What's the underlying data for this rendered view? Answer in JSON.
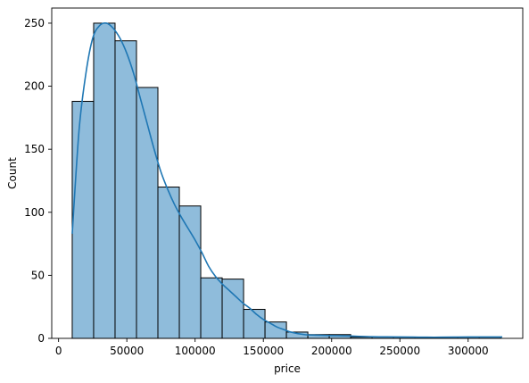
{
  "chart_data": {
    "type": "bar",
    "subtype": "histogram_with_kde",
    "title": "",
    "xlabel": "price",
    "ylabel": "Count",
    "xlim": [
      -5000,
      340000
    ],
    "ylim": [
      0,
      262
    ],
    "x_ticks": [
      0,
      50000,
      100000,
      150000,
      200000,
      250000,
      300000
    ],
    "y_ticks": [
      0,
      50,
      100,
      150,
      200,
      250
    ],
    "grid": false,
    "legend": "none",
    "bar_fill_color": "#8fbcdb",
    "bar_edge_color": "#000000",
    "kde_color": "#1f77b4",
    "bins": [
      {
        "x0": 10000,
        "x1": 25690,
        "count": 188
      },
      {
        "x0": 25690,
        "x1": 41380,
        "count": 250
      },
      {
        "x0": 41380,
        "x1": 57070,
        "count": 236
      },
      {
        "x0": 57070,
        "x1": 72760,
        "count": 199
      },
      {
        "x0": 72760,
        "x1": 88450,
        "count": 120
      },
      {
        "x0": 88450,
        "x1": 104140,
        "count": 105
      },
      {
        "x0": 104140,
        "x1": 119830,
        "count": 48
      },
      {
        "x0": 119830,
        "x1": 135520,
        "count": 47
      },
      {
        "x0": 135520,
        "x1": 151210,
        "count": 23
      },
      {
        "x0": 151210,
        "x1": 166900,
        "count": 13
      },
      {
        "x0": 166900,
        "x1": 182590,
        "count": 5
      },
      {
        "x0": 182590,
        "x1": 198280,
        "count": 3
      },
      {
        "x0": 198280,
        "x1": 213970,
        "count": 3
      },
      {
        "x0": 213970,
        "x1": 229660,
        "count": 1
      },
      {
        "x0": 229660,
        "x1": 245350,
        "count": 1
      },
      {
        "x0": 245350,
        "x1": 261040,
        "count": 1
      },
      {
        "x0": 261040,
        "x1": 276730,
        "count": 1
      },
      {
        "x0": 276730,
        "x1": 292420,
        "count": 1
      },
      {
        "x0": 292420,
        "x1": 308110,
        "count": 1
      },
      {
        "x0": 308110,
        "x1": 323800,
        "count": 1
      }
    ],
    "kde": {
      "x": [
        10000,
        15000,
        20000,
        25000,
        30000,
        35000,
        40000,
        45000,
        50000,
        55000,
        60000,
        65000,
        70000,
        75000,
        80000,
        85000,
        90000,
        95000,
        100000,
        105000,
        110000,
        115000,
        120000,
        125000,
        130000,
        135000,
        140000,
        145000,
        150000,
        155000,
        160000,
        165000,
        170000,
        180000,
        190000,
        200000,
        210000,
        220000,
        230000,
        240000,
        250000,
        260000,
        270000,
        280000,
        290000,
        300000,
        310000,
        325000
      ],
      "y": [
        83,
        165,
        210,
        238,
        248,
        250,
        246,
        238,
        226,
        210,
        190,
        170,
        150,
        132,
        118,
        106,
        96,
        87,
        78,
        68,
        57,
        49,
        43,
        38,
        33,
        28,
        24,
        19,
        15,
        12,
        9,
        7,
        5,
        3,
        2.5,
        2.2,
        2,
        1.6,
        1.3,
        1.2,
        1.1,
        1,
        0.9,
        0.9,
        1,
        1.1,
        1.1,
        1.1
      ]
    }
  }
}
